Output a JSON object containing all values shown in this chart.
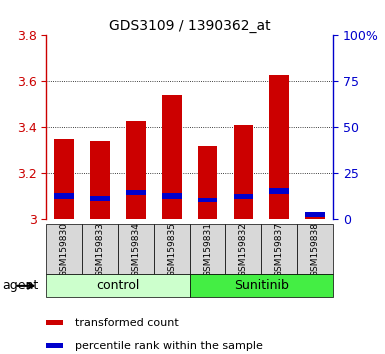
{
  "title": "GDS3109 / 1390362_at",
  "samples": [
    "GSM159830",
    "GSM159833",
    "GSM159834",
    "GSM159835",
    "GSM159831",
    "GSM159832",
    "GSM159837",
    "GSM159838"
  ],
  "red_values": [
    3.35,
    3.34,
    3.43,
    3.54,
    3.32,
    3.41,
    3.63,
    3.02
  ],
  "blue_bottoms": [
    3.09,
    3.08,
    3.105,
    3.09,
    3.075,
    3.09,
    3.11,
    3.01
  ],
  "blue_heights": [
    0.025,
    0.022,
    0.025,
    0.025,
    0.018,
    0.022,
    0.026,
    0.022
  ],
  "ymin": 3.0,
  "ymax": 3.8,
  "y2min": 0,
  "y2max": 100,
  "yticks": [
    3.0,
    3.2,
    3.4,
    3.6,
    3.8
  ],
  "ytick_labels": [
    "3",
    "3.2",
    "3.4",
    "3.6",
    "3.8"
  ],
  "y2ticks": [
    0,
    25,
    50,
    75,
    100
  ],
  "y2tick_labels": [
    "0",
    "25",
    "50",
    "75",
    "100%"
  ],
  "bar_width": 0.55,
  "red_color": "#cc0000",
  "blue_color": "#0000cc",
  "control_color": "#ccffcc",
  "sunitinib_color": "#44ee44",
  "control_label": "control",
  "sunitinib_label": "Sunitinib",
  "group_label": "agent",
  "legend_red": "transformed count",
  "legend_blue": "percentile rank within the sample",
  "n_control": 4,
  "n_sunitinib": 4,
  "grid_ticks": [
    3.2,
    3.4,
    3.6
  ]
}
